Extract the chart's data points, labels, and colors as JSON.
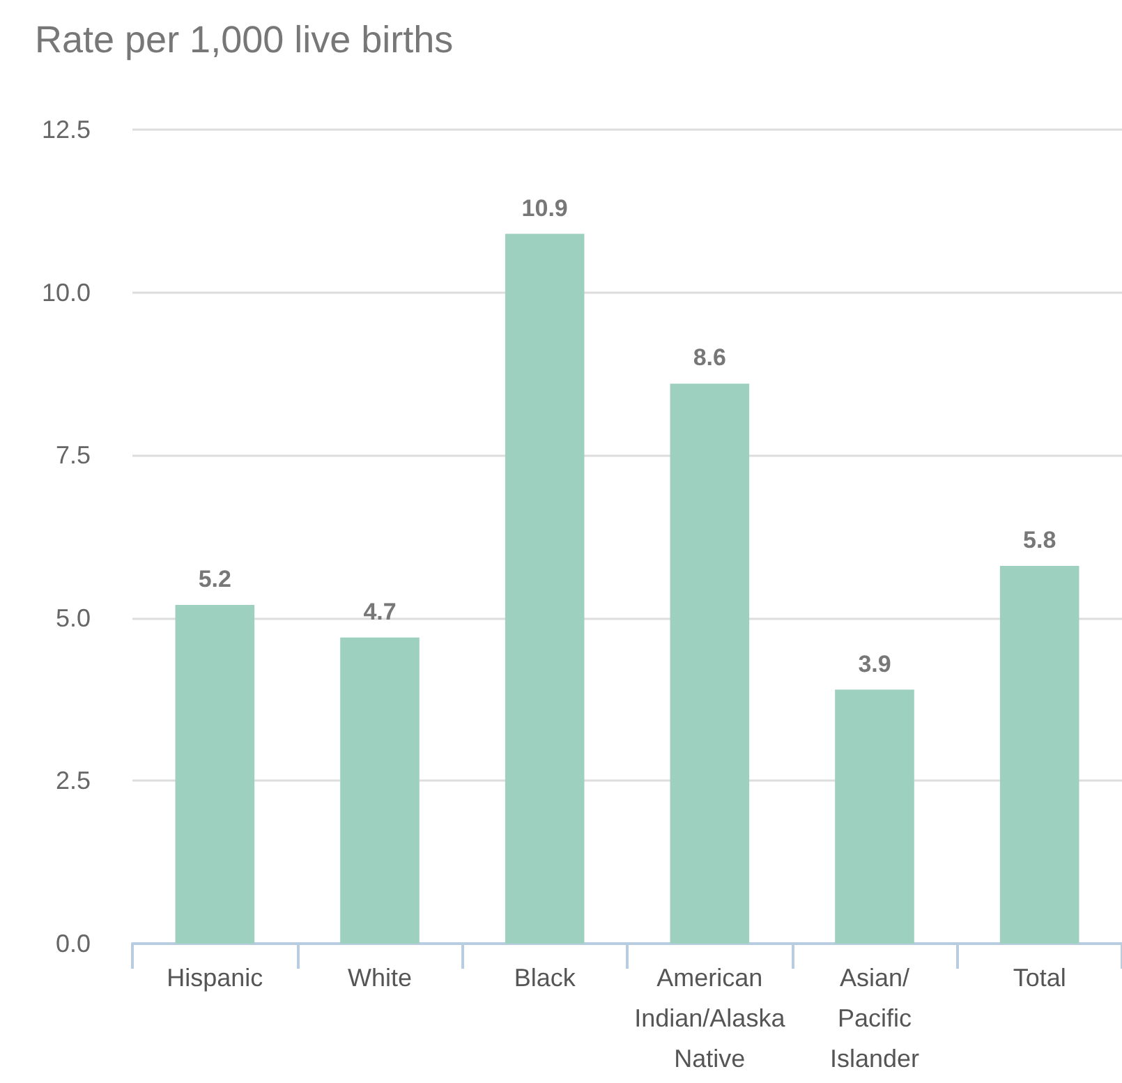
{
  "chart_data": {
    "type": "bar",
    "ylabel": "Rate per 1,000 live births",
    "categories": [
      "Hispanic",
      "White",
      "Black",
      "American\nIndian/Alaska\nNative",
      "Asian/\nPacific\nIslander",
      "Total"
    ],
    "values": [
      5.2,
      4.7,
      10.9,
      8.6,
      3.9,
      5.8
    ],
    "color": "#9dd0bf",
    "ylim": [
      0,
      12.5
    ],
    "yticks": [
      {
        "value": 0,
        "label": "0.0"
      },
      2.5,
      {
        "value": 5,
        "label": "5.0"
      },
      7.5,
      {
        "value": 10,
        "label": "10.0"
      },
      12.5
    ],
    "grid": "y",
    "data_labels": true
  }
}
